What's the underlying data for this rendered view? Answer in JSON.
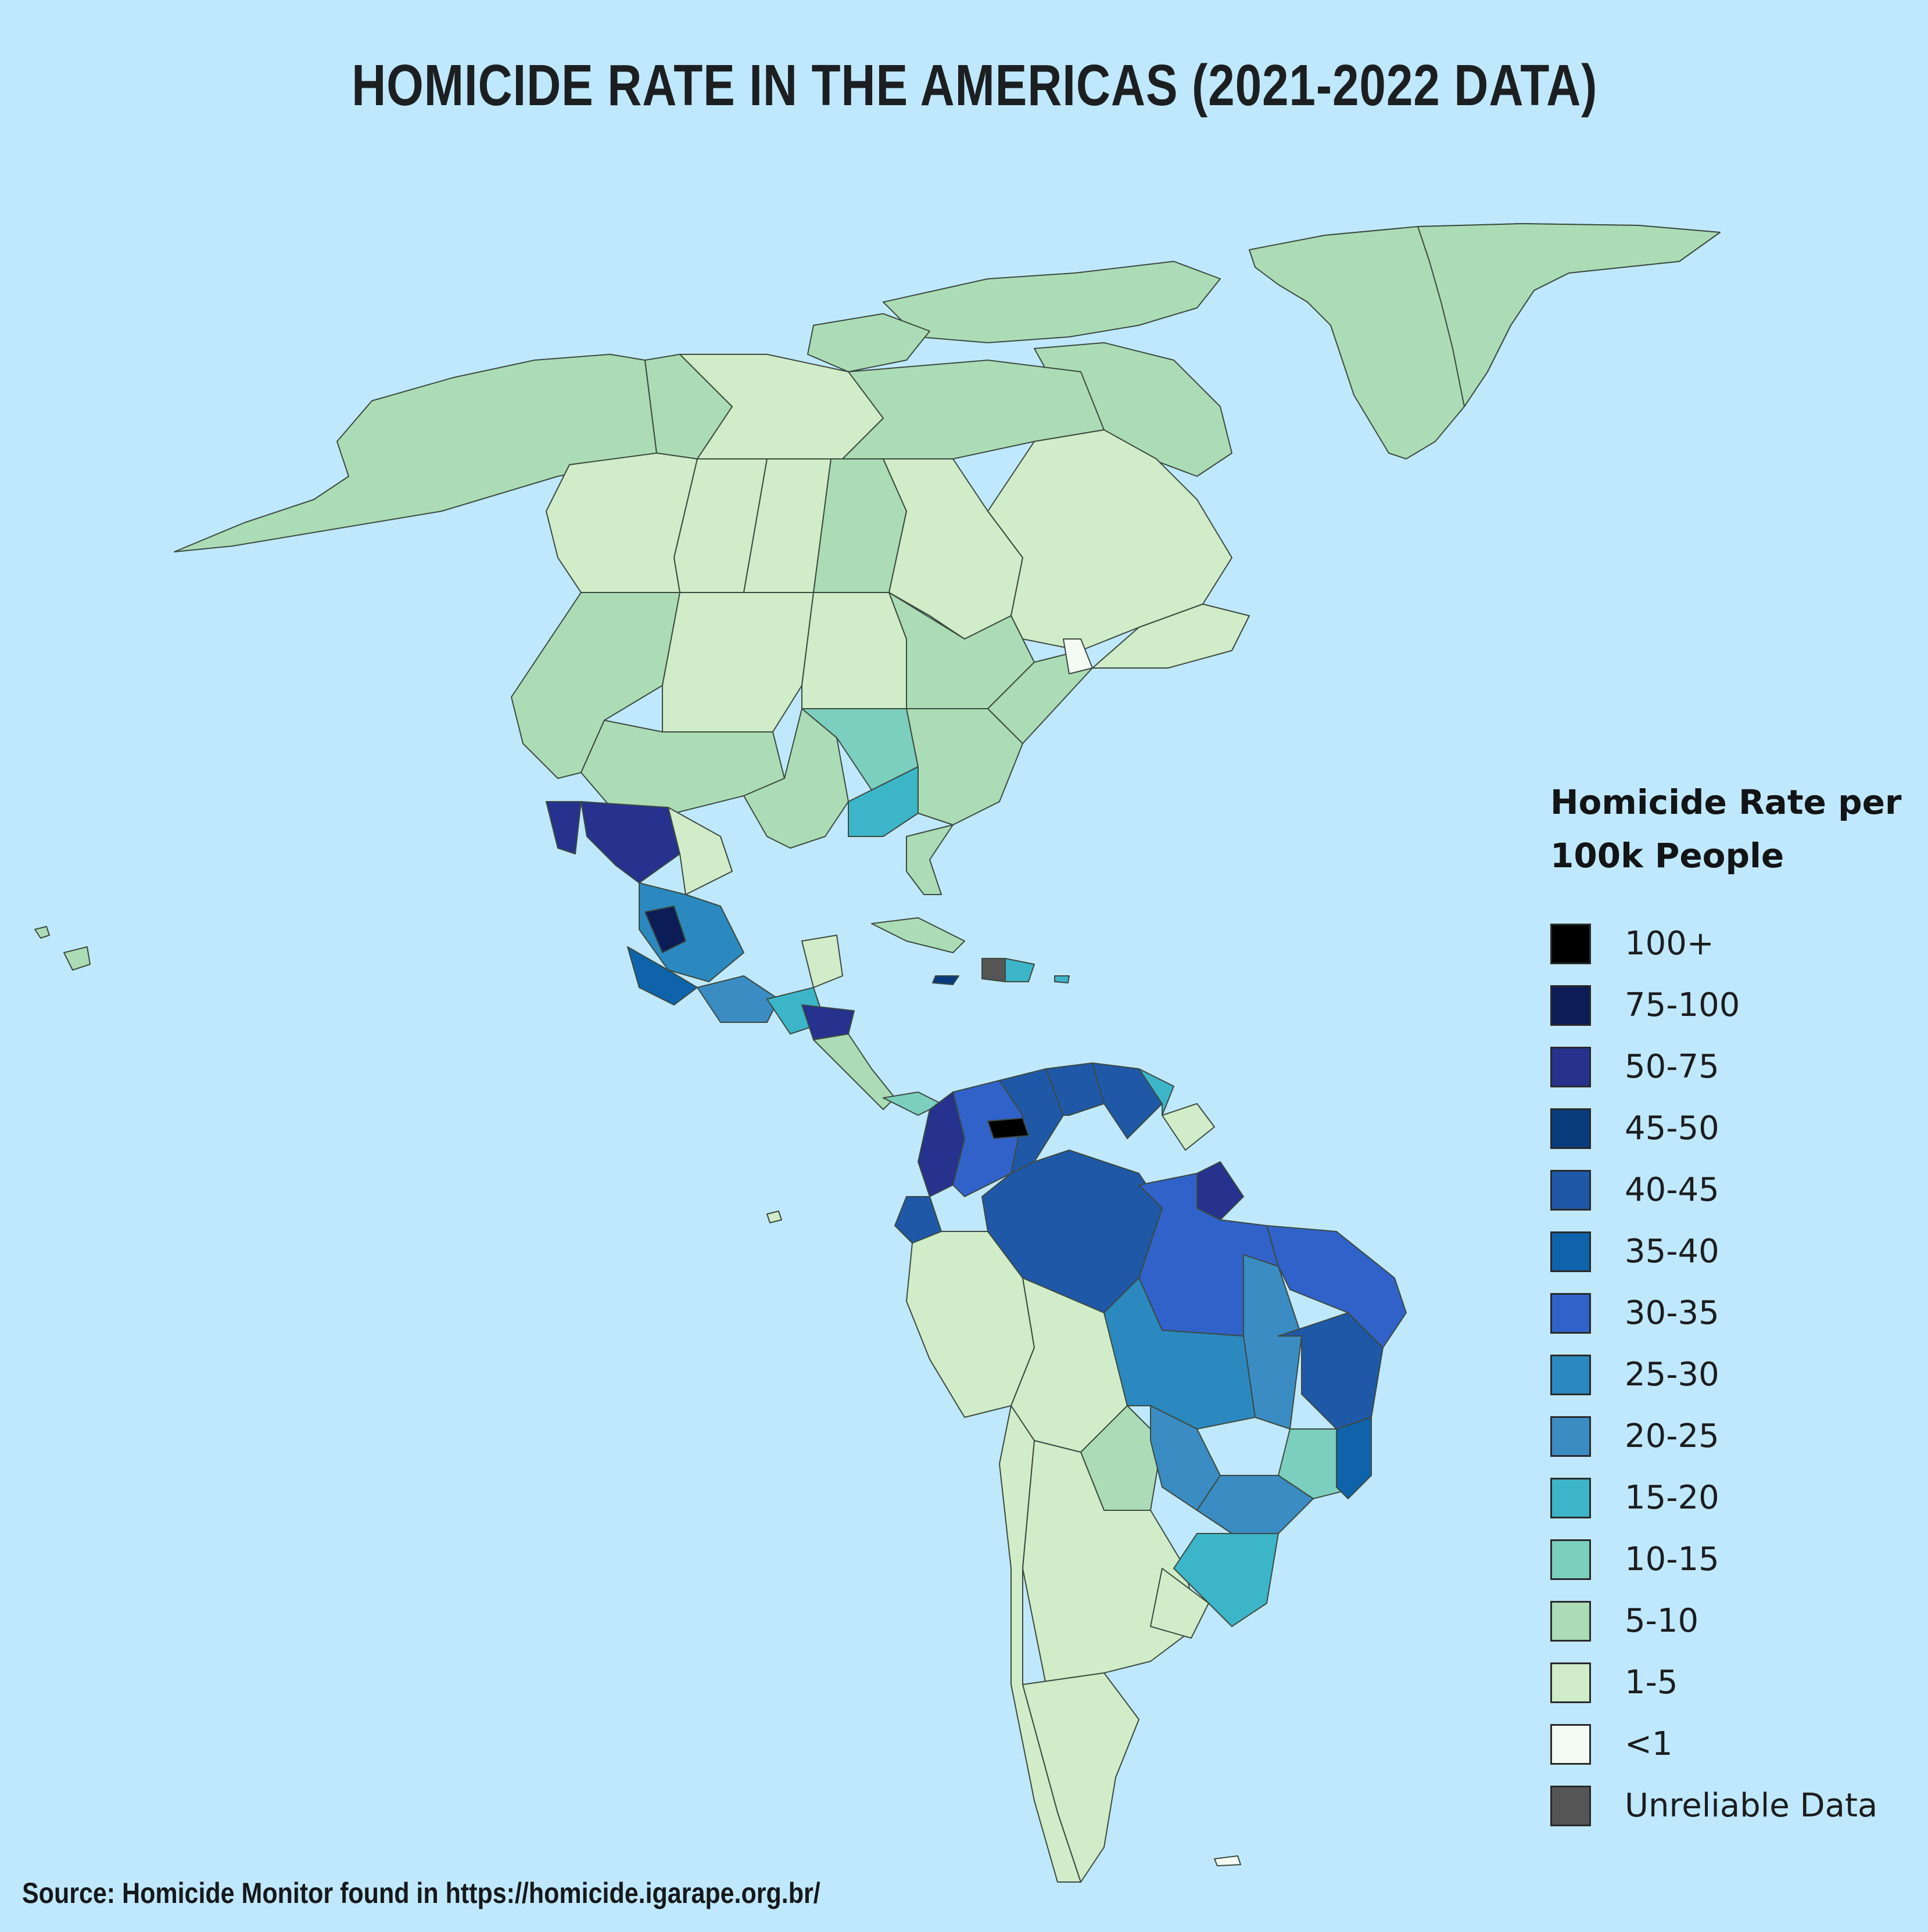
{
  "title": "HOMICIDE RATE IN THE AMERICAS (2021-2022 DATA)",
  "legend": {
    "title": "Homicide Rate per\n100k People",
    "items": [
      {
        "label": "100+",
        "color": "#000000"
      },
      {
        "label": "75-100",
        "color": "#0c1c56"
      },
      {
        "label": "50-75",
        "color": "#26328e"
      },
      {
        "label": "45-50",
        "color": "#083b7c"
      },
      {
        "label": "40-45",
        "color": "#2058a8"
      },
      {
        "label": "35-40",
        "color": "#0e63ab"
      },
      {
        "label": "30-35",
        "color": "#3162c9"
      },
      {
        "label": "25-30",
        "color": "#2b89c0"
      },
      {
        "label": "20-25",
        "color": "#3b8cc3"
      },
      {
        "label": "15-20",
        "color": "#3cb5c9"
      },
      {
        "label": "10-15",
        "color": "#7ccfbf"
      },
      {
        "label": "5-10",
        "color": "#acdcb5"
      },
      {
        "label": "1-5",
        "color": "#d1ecc8"
      },
      {
        "label": "<1",
        "color": "#f4fbf2"
      },
      {
        "label": "Unreliable Data",
        "color": "#555555"
      }
    ]
  },
  "source": "Source: Homicide Monitor found in https://homicide.igarape.org.br/",
  "colors": {
    "ocean": "#c0e8fd",
    "border": "#3b4a3f"
  }
}
